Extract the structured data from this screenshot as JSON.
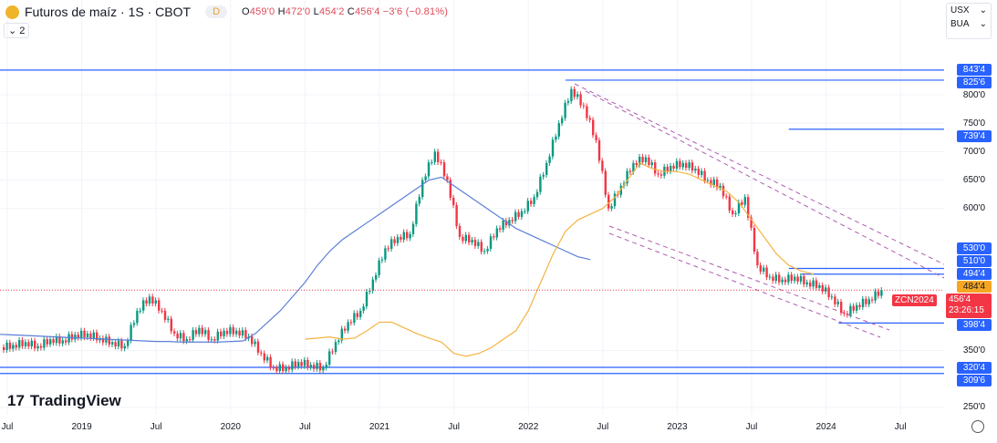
{
  "header": {
    "title": "Futuros de maíz · 1S · CBOT",
    "mode": "D",
    "ohlc": {
      "o_label": "O",
      "o": "459'0",
      "h_label": "H",
      "h": "472'0",
      "l_label": "L",
      "l": "454'2",
      "c_label": "C",
      "c": "456'4",
      "change": "−3'6 (−0.81%)"
    },
    "collapse": "2"
  },
  "selectors": {
    "currency": "USX",
    "unit": "BUA"
  },
  "brand": "TradingView",
  "countdown": {
    "symbol": "ZCN2024",
    "price": "456'4",
    "time": "23:26:15"
  },
  "colors": {
    "up": "#089981",
    "down": "#f23645",
    "ma_long": "#5b7fd6",
    "ma_short": "#f5b342",
    "level": "#2962ff",
    "channel": "#b05cb0"
  },
  "price_labels": [
    {
      "text": "843'4",
      "value": 843.5,
      "from": "2018-05"
    },
    {
      "text": "825'6",
      "value": 825.75,
      "from": "2022-04"
    },
    {
      "text": "739'4",
      "value": 739.5,
      "from": "2023-10"
    },
    {
      "text": "530'0",
      "value": 530,
      "from": null
    },
    {
      "text": "510'0",
      "value": 510,
      "from": null
    },
    {
      "text": "494'4",
      "value": 494.5,
      "from": "2023-10"
    },
    {
      "text": "484'4",
      "value": 484.5,
      "from": "2023-11",
      "orange": true
    },
    {
      "text": "398'4",
      "value": 398.5,
      "from": "2024-02"
    },
    {
      "text": "320'4",
      "value": 320.5,
      "from": "2018-05"
    },
    {
      "text": "309'6",
      "value": 309.75,
      "from": "2018-05"
    }
  ],
  "chart_data": {
    "type": "candlestick",
    "y_ticks": [
      "800'0",
      "750'0",
      "700'0",
      "650'0",
      "600'0",
      "350'0",
      "250'0"
    ],
    "y_tick_values": [
      800,
      750,
      700,
      650,
      600,
      350,
      250
    ],
    "x_ticks": [
      "Jul",
      "2019",
      "Jul",
      "2020",
      "Jul",
      "2021",
      "Jul",
      "2022",
      "Jul",
      "2023",
      "Jul",
      "2024",
      "Jul"
    ],
    "x_tick_dates": [
      "2018-07",
      "2019-01",
      "2019-07",
      "2020-01",
      "2020-07",
      "2021-01",
      "2021-07",
      "2022-01",
      "2022-07",
      "2023-01",
      "2023-07",
      "2024-01",
      "2024-07"
    ],
    "start": "2018-07",
    "monthly_close": [
      360,
      365,
      358,
      370,
      368,
      378,
      380,
      372,
      365,
      358,
      420,
      445,
      420,
      380,
      370,
      390,
      370,
      385,
      385,
      375,
      345,
      320,
      320,
      330,
      325,
      320,
      365,
      400,
      420,
      475,
      530,
      550,
      555,
      650,
      700,
      650,
      550,
      545,
      525,
      565,
      580,
      595,
      620,
      680,
      750,
      810,
      780,
      720,
      600,
      640,
      680,
      690,
      660,
      675,
      680,
      670,
      650,
      640,
      590,
      620,
      500,
      480,
      475,
      480,
      470,
      465,
      445,
      415,
      430,
      440,
      456.5
    ],
    "ma_long": [
      385,
      383,
      382,
      381,
      380,
      379,
      378,
      377,
      376,
      375,
      372,
      370,
      368,
      366,
      365,
      380,
      400,
      420,
      445,
      470,
      500,
      525,
      545,
      560,
      575,
      590,
      605,
      620,
      635,
      650,
      655,
      640,
      625,
      610,
      595,
      580,
      565,
      555,
      545,
      535,
      525,
      515,
      510
    ],
    "ma_long_start": "2020-10",
    "ma_short": [
      370,
      372,
      374,
      370,
      372,
      385,
      400,
      400,
      390,
      380,
      372,
      365,
      345,
      340,
      345,
      355,
      370,
      385,
      420,
      470,
      520,
      560,
      580,
      590,
      600,
      620,
      650,
      680,
      670,
      665,
      665,
      660,
      650,
      640,
      630,
      610,
      580,
      550,
      520,
      500,
      490,
      484.5
    ],
    "ma_short_start": "2020-11",
    "last_price": 456.5
  }
}
